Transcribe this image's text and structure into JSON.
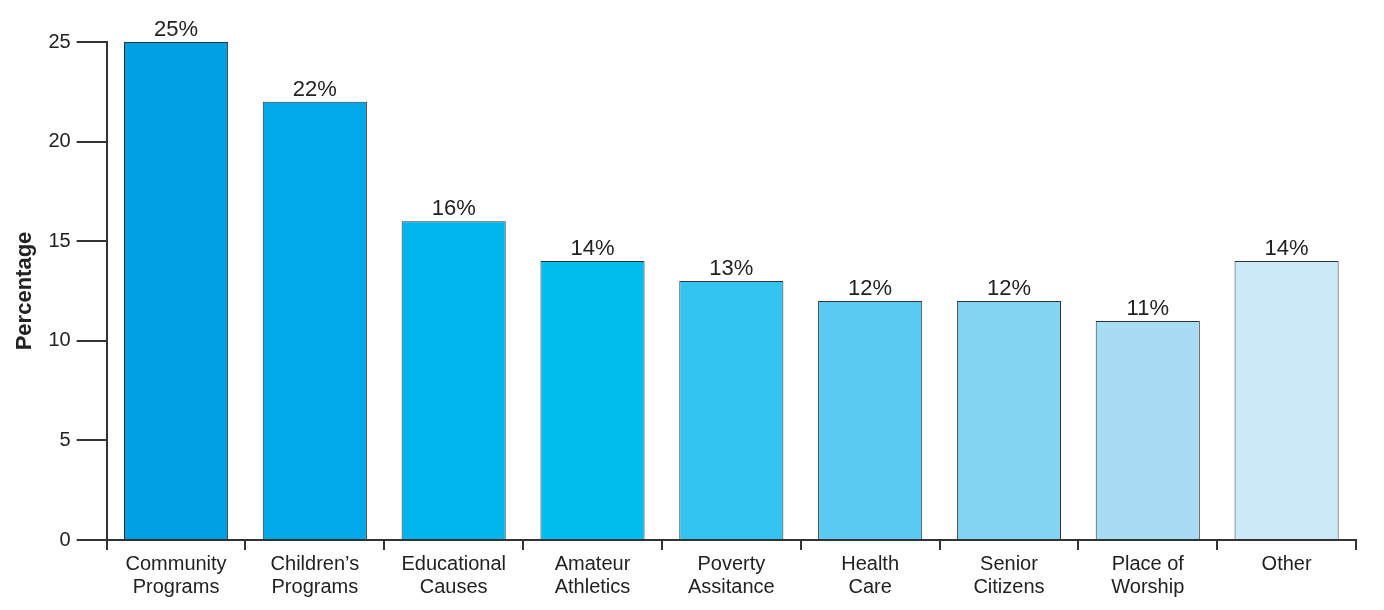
{
  "chart_data": {
    "type": "bar",
    "ylabel": "Percentage",
    "categories": [
      "Community Programs",
      "Children’s Programs",
      "Educational Causes",
      "Amateur Athletics",
      "Poverty Assitance",
      "Health Care",
      "Senior Citizens",
      "Place of Worship",
      "Other"
    ],
    "values": [
      25,
      22,
      16,
      14,
      13,
      12,
      12,
      11,
      14
    ],
    "value_labels": [
      "25%",
      "22%",
      "16%",
      "14%",
      "13%",
      "12%",
      "12%",
      "11%",
      "14%"
    ],
    "colors": [
      "#00a0e3",
      "#00aaea",
      "#00b4ed",
      "#00bdf0",
      "#33c4f2",
      "#5ccbf3",
      "#85d3f3",
      "#a8dcf4",
      "#cbe9f7"
    ],
    "ylim": [
      0,
      25
    ],
    "yticks": [
      0,
      5,
      10,
      15,
      20,
      25
    ],
    "grid": false,
    "legend": false
  }
}
